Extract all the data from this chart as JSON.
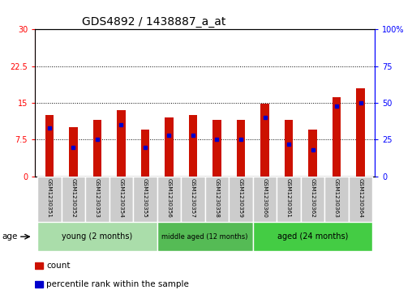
{
  "title": "GDS4892 / 1438887_a_at",
  "samples": [
    "GSM1230351",
    "GSM1230352",
    "GSM1230353",
    "GSM1230354",
    "GSM1230355",
    "GSM1230356",
    "GSM1230357",
    "GSM1230358",
    "GSM1230359",
    "GSM1230360",
    "GSM1230361",
    "GSM1230362",
    "GSM1230363",
    "GSM1230364"
  ],
  "counts": [
    12.5,
    10.0,
    11.5,
    13.5,
    9.5,
    12.0,
    12.5,
    11.5,
    11.5,
    14.8,
    11.5,
    9.5,
    16.2,
    18.0
  ],
  "percentile_ranks": [
    33,
    20,
    25,
    35,
    20,
    28,
    28,
    25,
    25,
    40,
    22,
    18,
    48,
    50
  ],
  "ylim_left": [
    0,
    30
  ],
  "ylim_right": [
    0,
    100
  ],
  "yticks_left": [
    0,
    7.5,
    15,
    22.5,
    30
  ],
  "yticks_right": [
    0,
    25,
    50,
    75,
    100
  ],
  "groups": [
    {
      "label": "young (2 months)",
      "start": 0,
      "end": 5,
      "color": "#AADDAA"
    },
    {
      "label": "middle aged (12 months)",
      "start": 5,
      "end": 9,
      "color": "#55BB55"
    },
    {
      "label": "aged (24 months)",
      "start": 9,
      "end": 14,
      "color": "#44CC44"
    }
  ],
  "bar_color": "#CC1100",
  "percentile_color": "#0000CC",
  "bar_width": 0.35,
  "grid_color": "black",
  "background_color": "#ffffff",
  "legend_items": [
    "count",
    "percentile rank within the sample"
  ],
  "age_label": "age",
  "title_fontsize": 10,
  "axis_fontsize": 7,
  "label_fontsize": 7
}
